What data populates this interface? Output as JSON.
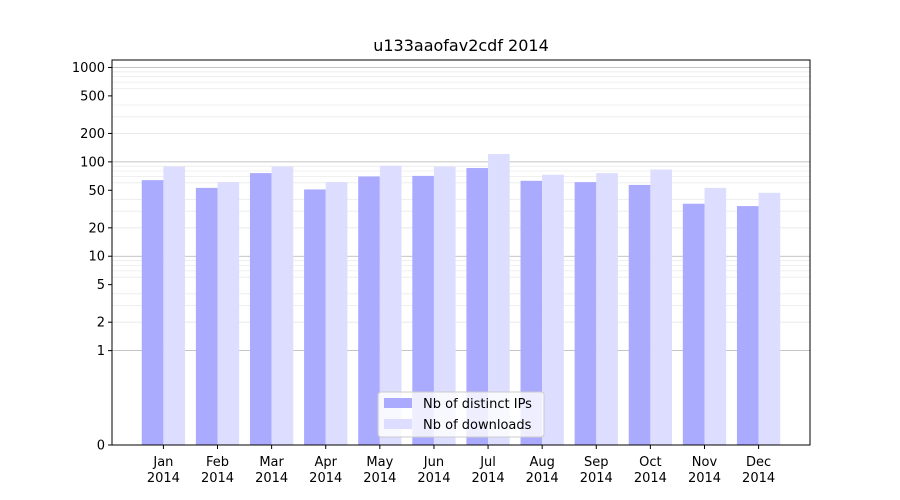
{
  "chart_data": {
    "type": "bar",
    "title": "u133aaofav2cdf 2014",
    "xlabel": "",
    "ylabel": "",
    "yscale": "symlog",
    "ylim": [
      0,
      1200
    ],
    "grid": "horizontal",
    "legend_position": "bottom-center",
    "categories": [
      {
        "month": "Jan",
        "year": "2014"
      },
      {
        "month": "Feb",
        "year": "2014"
      },
      {
        "month": "Mar",
        "year": "2014"
      },
      {
        "month": "Apr",
        "year": "2014"
      },
      {
        "month": "May",
        "year": "2014"
      },
      {
        "month": "Jun",
        "year": "2014"
      },
      {
        "month": "Jul",
        "year": "2014"
      },
      {
        "month": "Aug",
        "year": "2014"
      },
      {
        "month": "Sep",
        "year": "2014"
      },
      {
        "month": "Oct",
        "year": "2014"
      },
      {
        "month": "Nov",
        "year": "2014"
      },
      {
        "month": "Dec",
        "year": "2014"
      }
    ],
    "y_ticks": [
      {
        "value": 0,
        "label": "0"
      },
      {
        "value": 1,
        "label": "1"
      },
      {
        "value": 2,
        "label": "2"
      },
      {
        "value": 5,
        "label": "5"
      },
      {
        "value": 10,
        "label": "10"
      },
      {
        "value": 20,
        "label": "20"
      },
      {
        "value": 50,
        "label": "50"
      },
      {
        "value": 100,
        "label": "100"
      },
      {
        "value": 200,
        "label": "200"
      },
      {
        "value": 500,
        "label": "500"
      },
      {
        "value": 1000,
        "label": "1000"
      }
    ],
    "series": [
      {
        "name": "Nb of distinct IPs",
        "color": "#aaaaff",
        "values": [
          64,
          53,
          76,
          51,
          70,
          71,
          86,
          63,
          61,
          57,
          36,
          34
        ]
      },
      {
        "name": "Nb of downloads",
        "color": "#ddddff",
        "values": [
          89,
          61,
          89,
          61,
          91,
          89,
          121,
          73,
          76,
          83,
          53,
          47
        ]
      }
    ]
  }
}
